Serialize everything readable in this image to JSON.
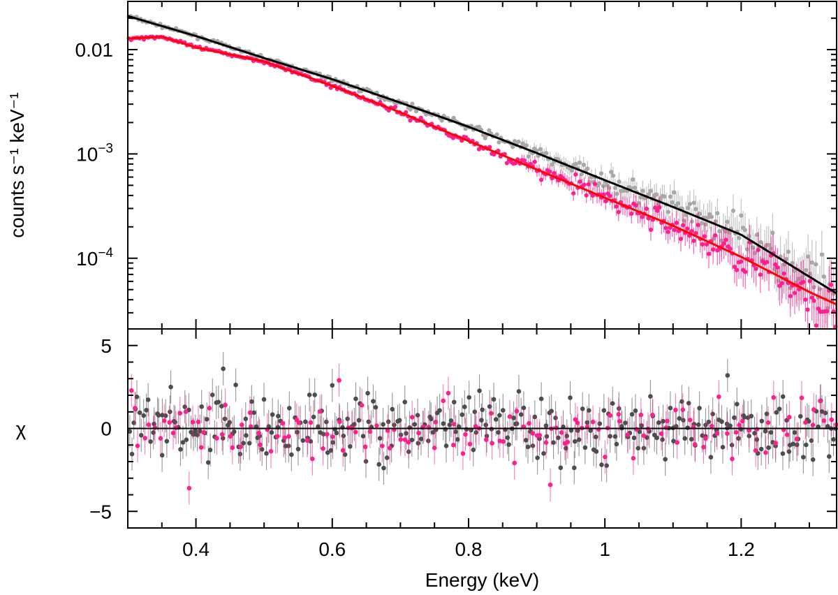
{
  "chart_data": [
    {
      "type": "scatter",
      "panel": "spectrum",
      "xlabel": "Energy (keV)",
      "ylabel": "counts s⁻¹ keV⁻¹",
      "xscale": "linear",
      "yscale": "log",
      "xlim": [
        0.3,
        1.34
      ],
      "ylim": [
        2.1e-05,
        0.029
      ],
      "x_tick_labels": [
        "0.4",
        "0.6",
        "0.8",
        "1",
        "1.2"
      ],
      "x_ticks": [
        0.4,
        0.6,
        0.8,
        1.0,
        1.2
      ],
      "y_tick_labels": [
        {
          "value": 0.01,
          "base": "0.01",
          "exp": ""
        },
        {
          "value": 0.001,
          "base": "10",
          "exp": "−3"
        },
        {
          "value": 0.0001,
          "base": "10",
          "exp": "−4"
        }
      ],
      "series": [
        {
          "name": "data set 1 (grey points)",
          "color": "#a8a8a8",
          "kind": "points",
          "x": [
            0.3,
            0.4,
            0.5,
            0.6,
            0.7,
            0.8,
            0.9,
            1.0,
            1.1,
            1.2,
            1.3,
            1.34
          ],
          "y": [
            0.021,
            0.0135,
            0.0083,
            0.0052,
            0.0031,
            0.00182,
            0.00102,
            0.00056,
            0.00031,
            0.000168,
            6.65e-05,
            4.6e-05
          ]
        },
        {
          "name": "data set 2 (magenta points)",
          "color": "#ff1f8f",
          "kind": "points",
          "x": [
            0.3,
            0.35,
            0.4,
            0.5,
            0.6,
            0.7,
            0.8,
            0.9,
            1.0,
            1.1,
            1.2,
            1.3,
            1.34
          ],
          "y": [
            0.0128,
            0.0133,
            0.0105,
            0.0077,
            0.0045,
            0.0025,
            0.00133,
            0.00071,
            0.00038,
            0.000205,
            0.000103,
            4.75e-05,
            3.6e-05
          ]
        },
        {
          "name": "model 1",
          "color": "#000000",
          "kind": "line",
          "x": [
            0.3,
            0.4,
            0.5,
            0.6,
            0.7,
            0.8,
            0.9,
            1.0,
            1.1,
            1.2,
            1.3,
            1.34
          ],
          "y": [
            0.021,
            0.0135,
            0.0083,
            0.0052,
            0.0031,
            0.00182,
            0.00102,
            0.00056,
            0.00031,
            0.000168,
            6.65e-05,
            4.6e-05
          ]
        },
        {
          "name": "model 2",
          "color": "#ff0000",
          "kind": "line",
          "x": [
            0.3,
            0.35,
            0.4,
            0.5,
            0.6,
            0.7,
            0.8,
            0.9,
            1.0,
            1.1,
            1.2,
            1.3,
            1.34
          ],
          "y": [
            0.0128,
            0.0133,
            0.0105,
            0.0077,
            0.0045,
            0.0025,
            0.00133,
            0.00071,
            0.00038,
            0.000205,
            0.000103,
            4.75e-05,
            3.6e-05
          ]
        }
      ]
    },
    {
      "type": "scatter",
      "panel": "residuals",
      "xlabel": "Energy (keV)",
      "ylabel": "χ",
      "xscale": "linear",
      "yscale": "linear",
      "xlim": [
        0.3,
        1.34
      ],
      "ylim": [
        -6,
        6
      ],
      "zero_line": 0,
      "y_ticks": [
        -5,
        0,
        5
      ],
      "y_tick_labels": [
        "−5",
        "0",
        "5"
      ],
      "series": [
        {
          "name": "residuals 1 (dark grey)",
          "color": "#4d4d4d",
          "spread": 1.0,
          "count": 330,
          "notable_points": [
            {
              "x": 0.44,
              "y": 3.6
            },
            {
              "x": 1.18,
              "y": 3.2
            },
            {
              "x": 0.6,
              "y": 2.6
            }
          ]
        },
        {
          "name": "residuals 2 (magenta)",
          "color": "#ff1f8f",
          "spread": 1.0,
          "count": 150,
          "notable_points": [
            {
              "x": 0.39,
              "y": -3.6
            },
            {
              "x": 0.92,
              "y": -3.4
            },
            {
              "x": 0.61,
              "y": 2.9
            }
          ]
        }
      ]
    }
  ]
}
